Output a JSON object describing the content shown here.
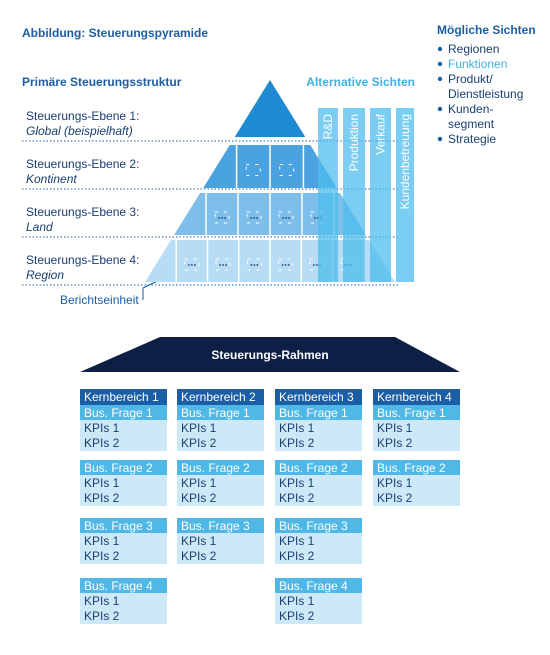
{
  "title": "Abbildung: Steuerungspyramide",
  "views": {
    "title": "Mögliche Sichten",
    "items": [
      [
        "Regionen"
      ],
      [
        "Funktionen"
      ],
      [
        "Produkt/",
        "Dienstleistung"
      ],
      [
        "Kunden-",
        "segment"
      ],
      [
        "Strategie"
      ]
    ]
  },
  "pyramid": {
    "title": "Primäre Steuerungsstruktur",
    "levels": [
      {
        "name": "Steuerungs-Ebene 1:",
        "sub": "Global (beispielhaft)"
      },
      {
        "name": "Steuerungs-Ebene 2:",
        "sub": "Kontinent"
      },
      {
        "name": "Steuerungs-Ebene 3:",
        "sub": "Land"
      },
      {
        "name": "Steuerungs-Ebene 4:",
        "sub": "Region"
      }
    ],
    "unit": "Berichtseinheit"
  },
  "alternatives": {
    "title": "Alternative Sichten",
    "columns": [
      "R&D",
      "Produktion",
      "Verkauf",
      "Kundenbetreuung"
    ]
  },
  "framework": {
    "title": "Steuerungs-Rahmen",
    "areas": [
      {
        "name": "Kernbereich 1",
        "questions": [
          {
            "q": "Bus. Frage 1",
            "kpis": [
              "KPIs 1",
              "KPIs 2"
            ]
          },
          {
            "q": "Bus. Frage 2",
            "kpis": [
              "KPIs 1",
              "KPIs 2"
            ]
          },
          {
            "q": "Bus. Frage 3",
            "kpis": [
              "KPIs 1",
              "KPIs 2"
            ]
          },
          {
            "q": "Bus. Frage 4",
            "kpis": [
              "KPIs 1",
              "KPIs 2"
            ]
          }
        ]
      },
      {
        "name": "Kernbereich 2",
        "questions": [
          {
            "q": "Bus. Frage 1",
            "kpis": [
              "KPIs 1",
              "KPIs 2"
            ]
          },
          {
            "q": "Bus. Frage 2",
            "kpis": [
              "KPIs 1",
              "KPIs 2"
            ]
          },
          {
            "q": "Bus. Frage 3",
            "kpis": [
              "KPIs 1",
              "KPIs 2"
            ]
          }
        ]
      },
      {
        "name": "Kernbereich 3",
        "questions": [
          {
            "q": "Bus. Frage 1",
            "kpis": [
              "KPIs 1",
              "KPIs 2"
            ]
          },
          {
            "q": "Bus. Frage 2",
            "kpis": [
              "KPIs 1",
              "KPIs 2"
            ]
          },
          {
            "q": "Bus. Frage 3",
            "kpis": [
              "KPIs 1",
              "KPIs 2"
            ]
          },
          {
            "q": "Bus. Frage 4",
            "kpis": [
              "KPIs 1",
              "KPIs 2"
            ]
          }
        ]
      },
      {
        "name": "Kernbereich 4",
        "questions": [
          {
            "q": "Bus. Frage 1",
            "kpis": [
              "KPIs 1",
              "KPIs 2"
            ]
          },
          {
            "q": "Bus. Frage 2",
            "kpis": [
              "KPIs 1",
              "KPIs 2"
            ]
          }
        ]
      }
    ]
  }
}
